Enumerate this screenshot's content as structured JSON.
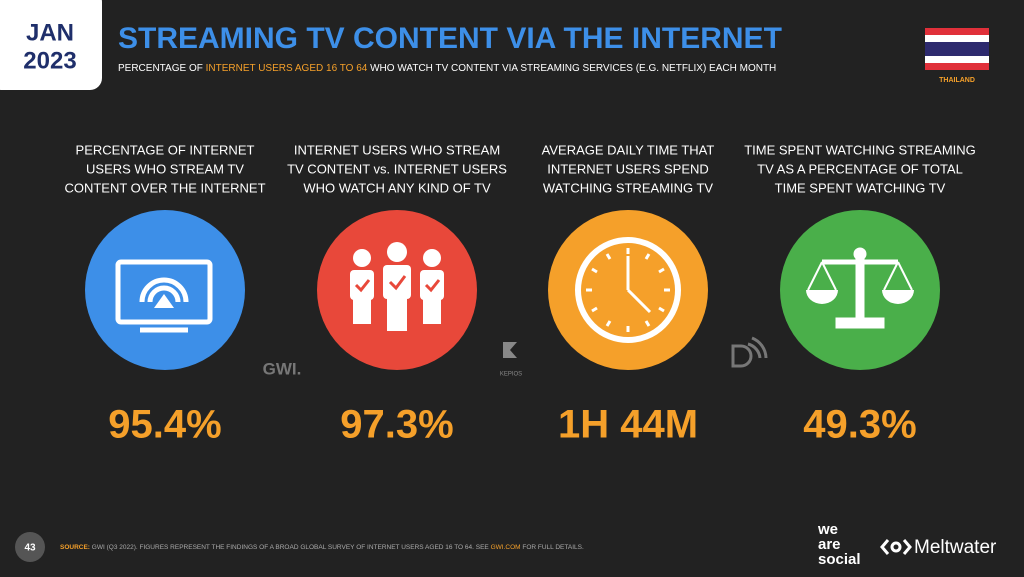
{
  "header": {
    "month": "JAN",
    "year": "2023",
    "title": "STREAMING TV CONTENT VIA THE INTERNET",
    "subtitle": [
      "PERCENTAGE OF ",
      "INTERNET USERS AGED 16 TO 64",
      " WHO WATCH TV CONTENT VIA STREAMING SERVICES (E.G. NETFLIX) EACH MONTH"
    ],
    "country": "THAILAND"
  },
  "stats": [
    {
      "label": [
        "PERCENTAGE OF INTERNET",
        "USERS WHO STREAM TV",
        "CONTENT OVER THE INTERNET"
      ],
      "value": "95.4%"
    },
    {
      "label": [
        "INTERNET USERS WHO STREAM",
        "TV CONTENT vs. INTERNET USERS",
        "WHO WATCH ANY KIND OF TV"
      ],
      "value": "97.3%"
    },
    {
      "label": [
        "AVERAGE DAILY TIME THAT",
        "INTERNET USERS SPEND",
        "WATCHING STREAMING TV"
      ],
      "value": "1H 44M"
    },
    {
      "label": [
        "TIME SPENT WATCHING STREAMING",
        "TV AS A PERCENTAGE OF TOTAL",
        "TIME SPENT WATCHING TV"
      ],
      "value": "49.3%"
    }
  ],
  "logos": {
    "gwi": "GWI.",
    "kepios": "KEPIOS"
  },
  "footer": {
    "page": "43",
    "source": [
      "SOURCE:",
      " GWI (Q3 2022). FIGURES REPRESENT THE FINDINGS OF A BROAD GLOBAL SURVEY OF INTERNET USERS AGED 16 TO 64. SEE ",
      "GWI.COM",
      " FOR FULL DETAILS."
    ],
    "brand": [
      "we",
      "are",
      "social"
    ],
    "partner": "Meltwater"
  }
}
